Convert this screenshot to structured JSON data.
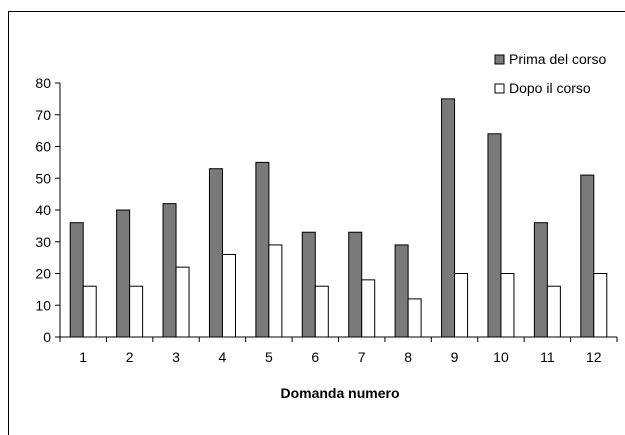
{
  "chart_data": {
    "type": "bar",
    "categories": [
      "1",
      "2",
      "3",
      "4",
      "5",
      "6",
      "7",
      "8",
      "9",
      "10",
      "11",
      "12"
    ],
    "series": [
      {
        "name": "Prima del corso",
        "color": "#7a7a7a",
        "values": [
          36,
          40,
          42,
          53,
          55,
          33,
          33,
          29,
          75,
          64,
          36,
          51
        ]
      },
      {
        "name": "Dopo il corso",
        "color": "#ffffff",
        "values": [
          16,
          16,
          22,
          26,
          29,
          16,
          18,
          12,
          20,
          20,
          16,
          20
        ]
      }
    ],
    "title": "",
    "xlabel": "Domanda numero",
    "ylabel": "",
    "ylim": [
      0,
      80
    ],
    "yticks": [
      0,
      10,
      20,
      30,
      40,
      50,
      60,
      70,
      80
    ],
    "grid": false,
    "legend_position": "top-right"
  }
}
